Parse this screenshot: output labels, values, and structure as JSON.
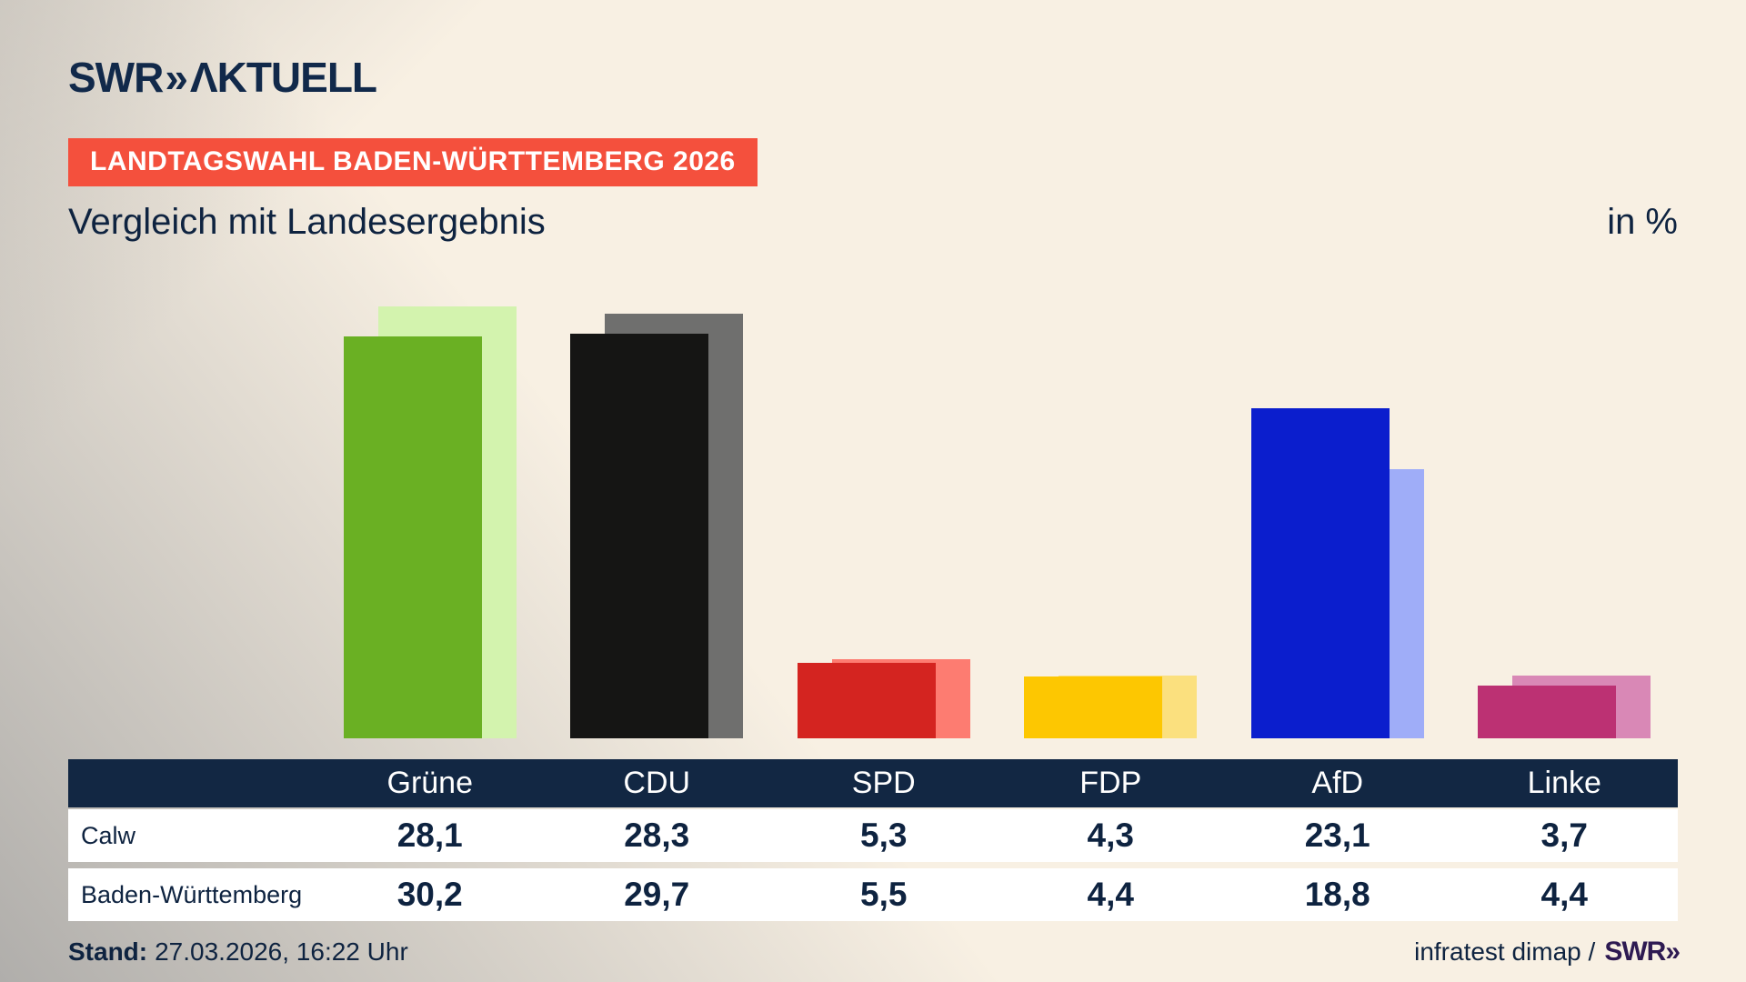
{
  "header": {
    "logo_swr": "SWR",
    "logo_chevrons": "»",
    "logo_aktuell": "ΛKTUELL",
    "badge": "LANDTAGSWAHL BADEN-WÜRTTEMBERG 2026",
    "title": "Vergleich mit Landesergebnis",
    "unit_label": "in %"
  },
  "chart_data": {
    "type": "bar",
    "title": "Vergleich mit Landesergebnis",
    "unit": "%",
    "categories": [
      "Grüne",
      "CDU",
      "SPD",
      "FDP",
      "AfD",
      "Linke"
    ],
    "series": [
      {
        "name": "Calw",
        "values": [
          28.1,
          28.3,
          5.3,
          4.3,
          23.1,
          3.7
        ],
        "colors": [
          "#6ab023",
          "#151514",
          "#d42420",
          "#fdc701",
          "#0b1ecd",
          "#bc3173"
        ]
      },
      {
        "name": "Baden-Württemberg",
        "values": [
          30.2,
          29.7,
          5.5,
          4.4,
          18.8,
          4.4
        ],
        "colors": [
          "#d3f3ae",
          "#6f6f6e",
          "#fd7c71",
          "#fbe07e",
          "#9fadf8",
          "#d988b6"
        ]
      }
    ],
    "ylim": [
      0,
      30.6
    ],
    "grid": false,
    "legend": "table-below",
    "value_labels": false
  },
  "table": {
    "corner": "",
    "header": [
      "Grüne",
      "CDU",
      "SPD",
      "FDP",
      "AfD",
      "Linke"
    ],
    "rows": [
      {
        "label": "Calw",
        "values": [
          "28,1",
          "28,3",
          "5,3",
          "4,3",
          "23,1",
          "3,7"
        ]
      },
      {
        "label": "Baden-Württemberg",
        "values": [
          "30,2",
          "29,7",
          "5,5",
          "4,4",
          "18,8",
          "4,4"
        ]
      }
    ]
  },
  "footer": {
    "stand_label": "Stand:",
    "stand_value": "27.03.2026, 16:22 Uhr",
    "source_text": "infratest dimap /",
    "source_logo": "SWR",
    "source_logo_chevrons": "»"
  },
  "theme": {
    "background_cream": "#f8f0e3",
    "background_shadow": "#b0aeab",
    "text_navy": "#0e2340",
    "badge_red": "#f4503d",
    "table_header_navy": "#122743",
    "source_logo_purple": "#2e1a52"
  }
}
